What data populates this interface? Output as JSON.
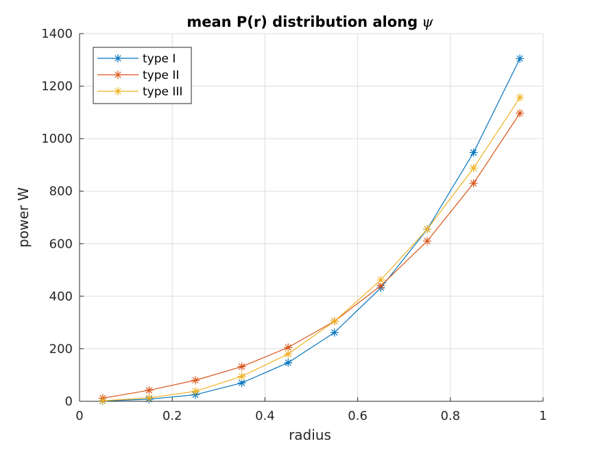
{
  "chart_data": {
    "type": "line",
    "title": "mean P(r) distribution along",
    "title_symbol": "ψ",
    "xlabel": "radius",
    "ylabel": "power W",
    "xlim": [
      0,
      1
    ],
    "ylim": [
      0,
      1400
    ],
    "xticks": [
      0,
      0.2,
      0.4,
      0.6,
      0.8,
      1
    ],
    "xtick_labels": [
      "0",
      "0.2",
      "0.4",
      "0.6",
      "0.8",
      "1"
    ],
    "yticks": [
      0,
      200,
      400,
      600,
      800,
      1000,
      1200,
      1400
    ],
    "ytick_labels": [
      "0",
      "200",
      "400",
      "600",
      "800",
      "1000",
      "1200",
      "1400"
    ],
    "grid": true,
    "legend_position": "top-left",
    "marker": "asterisk",
    "x": [
      0.05,
      0.15,
      0.25,
      0.35,
      0.45,
      0.55,
      0.65,
      0.75,
      0.85,
      0.95
    ],
    "series": [
      {
        "name": "type I",
        "color": "#0072BD",
        "values": [
          1,
          8,
          25,
          70,
          147,
          262,
          432,
          655,
          947,
          1305
        ]
      },
      {
        "name": "type II",
        "color": "#D95319",
        "values": [
          12,
          42,
          80,
          132,
          205,
          305,
          440,
          610,
          830,
          1097
        ]
      },
      {
        "name": "type III",
        "color": "#EDB120",
        "values": [
          2,
          13,
          38,
          95,
          180,
          305,
          462,
          655,
          888,
          1157
        ]
      }
    ]
  }
}
